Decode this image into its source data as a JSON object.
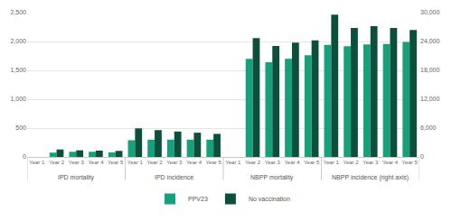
{
  "chart_data": {
    "type": "bar",
    "groups": [
      "IPD mortality",
      "IPD incidence",
      "NBPP mortality",
      "NBPP incidence (right axis)"
    ],
    "categories": [
      "Year 1",
      "Year 2",
      "Year 3",
      "Year 4",
      "Year 5",
      "Year 1",
      "Year 2",
      "Year 3",
      "Year 4",
      "Year 5",
      "Year 1",
      "Year 2",
      "Year 3",
      "Year 4",
      "Year 5",
      "Year 1",
      "Year 2",
      "Year 3",
      "Year 4",
      "Year 5"
    ],
    "series": [
      {
        "name": "PPV23",
        "color": "#16a07c",
        "values": [
          0,
          75,
          90,
          90,
          80,
          290,
          300,
          300,
          300,
          300,
          0,
          1700,
          1640,
          1700,
          1760,
          null,
          null,
          null,
          null,
          null
        ]
      },
      {
        "name": "No vaccination",
        "color": "#0d4f3d",
        "values": [
          0,
          130,
          115,
          110,
          105,
          495,
          465,
          440,
          420,
          400,
          0,
          2060,
          1920,
          1980,
          2020,
          null,
          null,
          null,
          null,
          null
        ]
      },
      {
        "name": "PPV23",
        "color": "#16a07c",
        "axis": "y2",
        "values": [
          null,
          null,
          null,
          null,
          null,
          null,
          null,
          null,
          null,
          null,
          null,
          null,
          null,
          null,
          null,
          23300,
          23000,
          23400,
          23500,
          23900
        ]
      },
      {
        "name": "No vaccination",
        "color": "#0d4f3d",
        "axis": "y2",
        "values": [
          null,
          null,
          null,
          null,
          null,
          null,
          null,
          null,
          null,
          null,
          null,
          null,
          null,
          null,
          null,
          29600,
          26800,
          27200,
          26800,
          26400
        ]
      }
    ],
    "ylim": [
      0,
      2500
    ],
    "yticks": [
      0,
      500,
      {
        "value": 1000,
        "label": "1,000"
      },
      {
        "value": 1500,
        "label": "1,500"
      },
      {
        "value": 2000,
        "label": "2,000"
      },
      {
        "value": 2500,
        "label": "2,500"
      }
    ],
    "y2lim": [
      0,
      30000
    ],
    "y2ticks": [
      0,
      {
        "value": 6000,
        "label": "6,000"
      },
      {
        "value": 12000,
        "label": "12,000"
      },
      {
        "value": 18000,
        "label": "18,000"
      },
      {
        "value": 24000,
        "label": "24,000"
      },
      {
        "value": 30000,
        "label": "30,000"
      }
    ],
    "grid": true,
    "legend": "bottom"
  }
}
